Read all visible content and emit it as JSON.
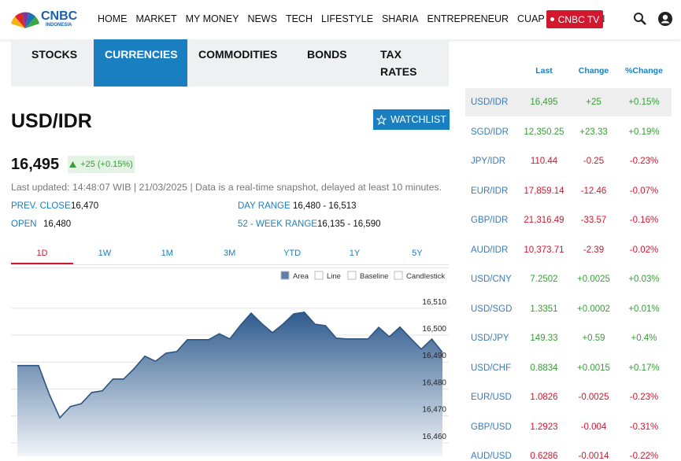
{
  "nav": {
    "logo": "CNBC",
    "logo_sub": "INDONESIA",
    "items": [
      "HOME",
      "MARKET",
      "MY MONEY",
      "NEWS",
      "TECH",
      "LIFESTYLE",
      "SHARIA",
      "ENTREPRENEUR",
      "CUAP CUAP CUAN"
    ],
    "tv": "CNBC TV"
  },
  "tabs": {
    "items": [
      "STOCKS",
      "CURRENCIES",
      "COMMODITIES",
      "BONDS",
      "TAX RATES"
    ],
    "active": 1
  },
  "quote": {
    "title": "USD/IDR",
    "watchlist": "WATCHLIST",
    "price": "16,495",
    "change": "+25 (+0.15%)",
    "updated": "Last updated: 14:48:07 WIB | 21/03/2025 | Data is a real-time snapshot, delayed at least 10 minutes.",
    "stats": [
      {
        "label": "PREV. CLOSE",
        "value": "16,470"
      },
      {
        "label": "DAY RANGE",
        "value": "16,480 - 16,513"
      },
      {
        "label": "OPEN",
        "value": "16,480"
      },
      {
        "label": "52 - WEEK RANGE",
        "value": "16,135 - 16,590"
      }
    ]
  },
  "chart_controls": {
    "ranges": [
      "1D",
      "1W",
      "1M",
      "3M",
      "YTD",
      "1Y",
      "5Y"
    ],
    "active_range": 0,
    "styles": [
      "Area",
      "Line",
      "Baseline",
      "Candlestick"
    ],
    "active_style": 0
  },
  "chart_data": {
    "type": "area",
    "values": [
      16488.7,
      16488.7,
      16488.7,
      16478.1,
      16469.3,
      16473.5,
      16474.5,
      16478.7,
      16479.3,
      16483.7,
      16483.7,
      16487.6,
      16492.2,
      16490.3,
      16493.3,
      16493.9,
      16498.3,
      16498.3,
      16498.3,
      16500.5,
      16498.6,
      16503.7,
      16508.2,
      16504.3,
      16500.9,
      16504.1,
      16507.9,
      16508.5,
      16504.1,
      16503.5,
      16498.9,
      16498.6,
      16498.6,
      16498.6,
      16502.9,
      16499.4,
      16503.0,
      16498.8,
      16494.8,
      16498.5,
      16493.6
    ],
    "color": "#2d5580",
    "ylim": [
      16455,
      16519
    ],
    "yticks": [
      {
        "value": 16460,
        "label": "16,460"
      },
      {
        "value": 16470,
        "label": "16,470"
      },
      {
        "value": 16480,
        "label": "16,480"
      },
      {
        "value": 16490,
        "label": "16,490"
      },
      {
        "value": 16500,
        "label": "16,500"
      },
      {
        "value": 16510,
        "label": "16,510"
      }
    ],
    "grid": true
  },
  "side_table": {
    "headers": [
      "Last",
      "Change",
      "%Change"
    ],
    "rows": [
      [
        "USD/IDR",
        "16,495",
        "+25",
        "+0.15%"
      ],
      [
        "SGD/IDR",
        "12,350.25",
        "+23.33",
        "+0.19%"
      ],
      [
        "JPY/IDR",
        "110.44",
        "-0.25",
        "-0.23%"
      ],
      [
        "EUR/IDR",
        "17,859.14",
        "-12.46",
        "-0.07%"
      ],
      [
        "GBP/IDR",
        "21,316.49",
        "-33.57",
        "-0.16%"
      ],
      [
        "AUD/IDR",
        "10,373.71",
        "-2.39",
        "-0.02%"
      ],
      [
        "USD/CNY",
        "7.2502",
        "+0.0025",
        "+0.03%"
      ],
      [
        "USD/SGD",
        "1.3351",
        "+0.0002",
        "+0.01%"
      ],
      [
        "USD/JPY",
        "149.33",
        "+0.59",
        "+0.4%"
      ],
      [
        "USD/CHF",
        "0.8834",
        "+0.0015",
        "+0.17%"
      ],
      [
        "EUR/USD",
        "1.0826",
        "-0.0025",
        "-0.23%"
      ],
      [
        "GBP/USD",
        "1.2923",
        "-0.004",
        "-0.31%"
      ],
      [
        "AUD/USD",
        "0.6286",
        "-0.0014",
        "-0.22%"
      ]
    ],
    "highlight": 0
  }
}
